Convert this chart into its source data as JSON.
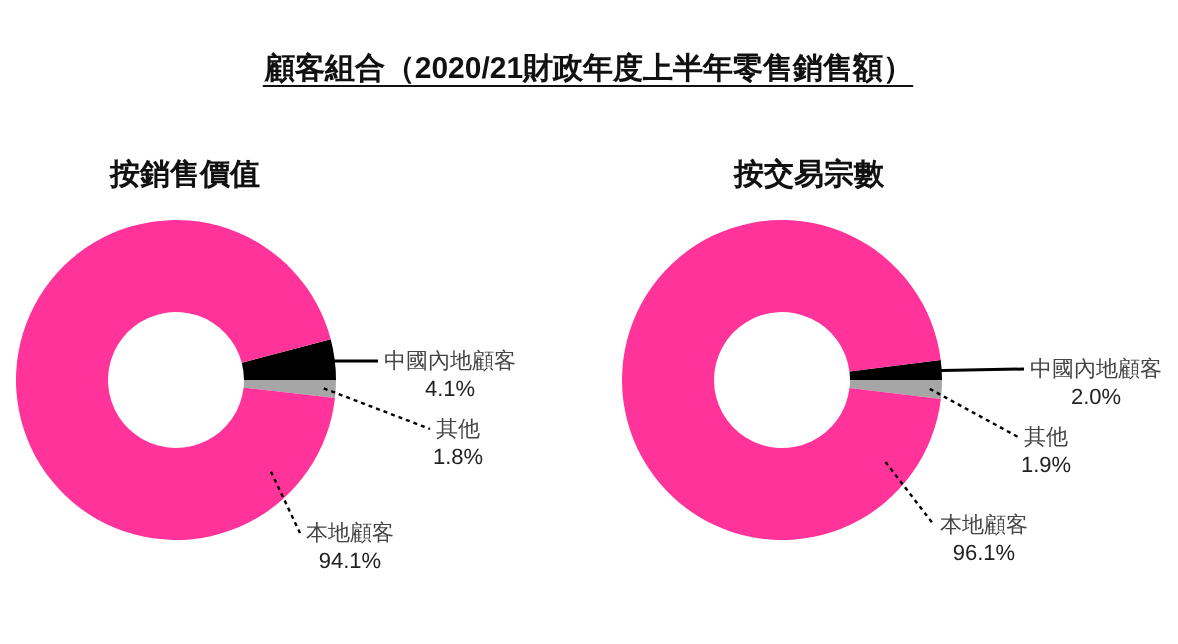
{
  "chart_data": [
    {
      "type": "donut",
      "title": "顧客組合（2020/21財政年度上半年零售銷售額）",
      "subtitle": "按銷售價值",
      "categories": [
        "中國內地顧客",
        "其他",
        "本地顧客"
      ],
      "values": [
        4.1,
        1.8,
        94.1
      ],
      "value_labels": [
        "4.1%",
        "1.8%",
        "94.1%"
      ],
      "colors": [
        "#000000",
        "#a6a6a6",
        "#ff3399"
      ]
    },
    {
      "type": "donut",
      "subtitle": "按交易宗數",
      "categories": [
        "中國內地顧客",
        "其他",
        "本地顧客"
      ],
      "values": [
        2.0,
        1.9,
        96.1
      ],
      "value_labels": [
        "2.0%",
        "1.9%",
        "96.1%"
      ],
      "colors": [
        "#000000",
        "#a6a6a6",
        "#ff3399"
      ]
    }
  ]
}
